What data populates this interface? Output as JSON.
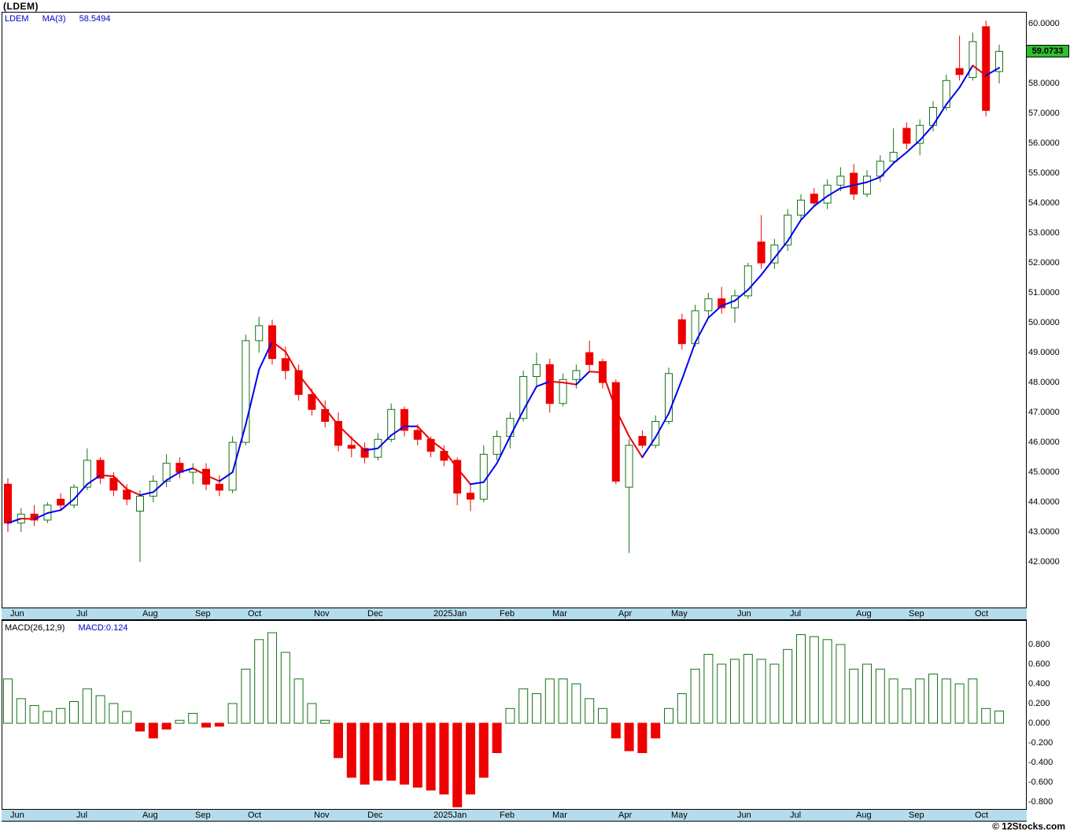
{
  "title": "(LDEM)",
  "watermark": "© 12Stocks.com",
  "main_legend": {
    "symbol": "LDEM",
    "ma_label": "MA(3)",
    "ma_value": "58.5494"
  },
  "macd_legend": {
    "name": "MACD(26,12,9)",
    "current": "MACD:0.124"
  },
  "last_price_label": "59.0733",
  "colors": {
    "candle_up_stroke": "#167316",
    "candle_up_fill": "#ffffff",
    "candle_down": "#ee0000",
    "ma_up": "#0000ee",
    "ma_down": "#ee0000",
    "macd_up_stroke": "#167316",
    "macd_up_fill": "#ffffff",
    "macd_down": "#ee0000",
    "ribbon_bg": "#b5dcec",
    "price_marker_bg": "#2fbf2f",
    "legend_blue": "#0000cc",
    "axis_text": "#000000"
  },
  "chart_data": [
    {
      "type": "candlestick",
      "name": "LDEM weekly price",
      "symbol": "LDEM",
      "overlay": {
        "name": "MA(3)",
        "period": 3,
        "last_value": 58.5494,
        "up_color": "#0000ee",
        "down_color": "#ee0000"
      },
      "last_price": 59.0733,
      "ylim": [
        40.5,
        60.37
      ],
      "y_ticks": [
        "60.0000",
        "58.0000",
        "57.0000",
        "56.0000",
        "55.0000",
        "54.0000",
        "53.0000",
        "52.0000",
        "51.0000",
        "50.0000",
        "49.0000",
        "48.0000",
        "47.0000",
        "46.0000",
        "45.0000",
        "44.0000",
        "43.0000",
        "42.0000"
      ],
      "months": [
        {
          "label": "Jun",
          "i": 0
        },
        {
          "label": "Jul",
          "i": 5
        },
        {
          "label": "Aug",
          "i": 10
        },
        {
          "label": "Sep",
          "i": 14
        },
        {
          "label": "Oct",
          "i": 18
        },
        {
          "label": "Nov",
          "i": 23
        },
        {
          "label": "Dec",
          "i": 27
        },
        {
          "label": "2025Jan",
          "i": 32
        },
        {
          "label": "Feb",
          "i": 37
        },
        {
          "label": "Mar",
          "i": 41
        },
        {
          "label": "Apr",
          "i": 46
        },
        {
          "label": "May",
          "i": 50
        },
        {
          "label": "Jun",
          "i": 55
        },
        {
          "label": "Jul",
          "i": 59
        },
        {
          "label": "Aug",
          "i": 64
        },
        {
          "label": "Sep",
          "i": 68
        },
        {
          "label": "Oct",
          "i": 73
        }
      ],
      "ohlc": [
        [
          44.6,
          44.8,
          43.0,
          43.3
        ],
        [
          43.3,
          43.8,
          43.0,
          43.6
        ],
        [
          43.6,
          43.9,
          43.2,
          43.4
        ],
        [
          43.4,
          44.0,
          43.3,
          43.9
        ],
        [
          44.1,
          44.3,
          43.7,
          43.9
        ],
        [
          43.9,
          44.6,
          43.8,
          44.5
        ],
        [
          44.5,
          45.8,
          44.4,
          45.4
        ],
        [
          45.4,
          45.5,
          44.6,
          44.8
        ],
        [
          44.8,
          45.0,
          44.2,
          44.4
        ],
        [
          44.4,
          44.6,
          43.9,
          44.1
        ],
        [
          43.7,
          44.4,
          42.0,
          44.2
        ],
        [
          44.2,
          44.9,
          44.0,
          44.7
        ],
        [
          44.7,
          45.6,
          44.5,
          45.3
        ],
        [
          45.3,
          45.5,
          44.8,
          45.0
        ],
        [
          45.0,
          45.3,
          44.6,
          45.1
        ],
        [
          45.1,
          45.3,
          44.4,
          44.6
        ],
        [
          44.6,
          44.9,
          44.2,
          44.4
        ],
        [
          44.4,
          46.2,
          44.3,
          46.0
        ],
        [
          46.0,
          49.6,
          45.9,
          49.4
        ],
        [
          49.4,
          50.2,
          49.0,
          49.9
        ],
        [
          49.9,
          50.1,
          48.6,
          48.8
        ],
        [
          48.8,
          49.2,
          48.1,
          48.4
        ],
        [
          48.4,
          48.6,
          47.4,
          47.6
        ],
        [
          47.6,
          47.8,
          46.9,
          47.1
        ],
        [
          47.1,
          47.4,
          46.5,
          46.7
        ],
        [
          46.7,
          47.0,
          45.7,
          45.9
        ],
        [
          45.9,
          46.2,
          45.5,
          45.8
        ],
        [
          45.8,
          46.0,
          45.3,
          45.5
        ],
        [
          45.5,
          46.3,
          45.4,
          46.1
        ],
        [
          46.1,
          47.3,
          46.0,
          47.1
        ],
        [
          47.1,
          47.2,
          46.2,
          46.4
        ],
        [
          46.4,
          46.6,
          45.9,
          46.1
        ],
        [
          46.1,
          46.2,
          45.5,
          45.7
        ],
        [
          45.7,
          45.9,
          45.2,
          45.4
        ],
        [
          45.4,
          45.5,
          43.9,
          44.3
        ],
        [
          44.3,
          44.6,
          43.7,
          44.1
        ],
        [
          44.1,
          45.9,
          44.0,
          45.6
        ],
        [
          45.6,
          46.4,
          45.4,
          46.2
        ],
        [
          46.2,
          47.0,
          45.8,
          46.8
        ],
        [
          46.8,
          48.4,
          46.7,
          48.2
        ],
        [
          48.2,
          49.0,
          47.9,
          48.6
        ],
        [
          48.6,
          48.8,
          47.0,
          47.3
        ],
        [
          47.3,
          48.3,
          47.2,
          48.1
        ],
        [
          48.1,
          48.6,
          47.8,
          48.4
        ],
        [
          49.0,
          49.4,
          48.4,
          48.6
        ],
        [
          48.7,
          48.8,
          47.8,
          48.0
        ],
        [
          48.0,
          48.1,
          44.6,
          44.7
        ],
        [
          44.5,
          46.1,
          42.3,
          45.9
        ],
        [
          46.2,
          46.4,
          45.8,
          45.9
        ],
        [
          45.9,
          46.9,
          45.8,
          46.7
        ],
        [
          46.7,
          48.5,
          46.6,
          48.3
        ],
        [
          50.1,
          50.3,
          49.1,
          49.3
        ],
        [
          49.3,
          50.6,
          49.2,
          50.4
        ],
        [
          50.4,
          51.0,
          50.2,
          50.8
        ],
        [
          50.8,
          51.2,
          50.3,
          50.5
        ],
        [
          50.5,
          51.1,
          50.0,
          50.9
        ],
        [
          50.9,
          52.0,
          50.8,
          51.9
        ],
        [
          52.7,
          53.6,
          51.8,
          52.0
        ],
        [
          52.0,
          52.8,
          51.8,
          52.6
        ],
        [
          52.6,
          53.8,
          52.4,
          53.6
        ],
        [
          53.6,
          54.3,
          53.4,
          54.1
        ],
        [
          54.3,
          54.5,
          53.9,
          54.0
        ],
        [
          54.0,
          54.8,
          53.8,
          54.6
        ],
        [
          54.6,
          55.2,
          54.4,
          54.9
        ],
        [
          55.0,
          55.3,
          54.1,
          54.3
        ],
        [
          54.3,
          55.1,
          54.2,
          54.9
        ],
        [
          54.9,
          55.6,
          54.7,
          55.4
        ],
        [
          55.4,
          56.5,
          55.3,
          55.7
        ],
        [
          56.5,
          56.7,
          55.8,
          56.0
        ],
        [
          56.0,
          56.8,
          55.6,
          56.6
        ],
        [
          56.6,
          57.4,
          56.4,
          57.2
        ],
        [
          57.2,
          58.3,
          57.1,
          58.1
        ],
        [
          58.5,
          59.6,
          58.1,
          58.3
        ],
        [
          58.2,
          59.7,
          58.1,
          59.4
        ],
        [
          59.9,
          60.1,
          56.9,
          57.1
        ],
        [
          58.4,
          59.3,
          58.0,
          59.0733
        ]
      ]
    },
    {
      "type": "bar",
      "name": "MACD(26,12,9)",
      "last_value": 0.124,
      "ylim": [
        -0.87,
        1.04
      ],
      "zero_line": 0,
      "y_ticks": [
        "0.800",
        "0.600",
        "0.400",
        "0.200",
        "0.000",
        "-0.200",
        "-0.400",
        "-0.600",
        "-0.800"
      ],
      "values": [
        0.45,
        0.25,
        0.18,
        0.12,
        0.15,
        0.22,
        0.35,
        0.28,
        0.2,
        0.12,
        -0.08,
        -0.15,
        -0.06,
        0.03,
        0.1,
        -0.04,
        -0.03,
        0.2,
        0.55,
        0.85,
        0.92,
        0.72,
        0.45,
        0.2,
        0.03,
        -0.35,
        -0.55,
        -0.62,
        -0.58,
        -0.58,
        -0.62,
        -0.65,
        -0.68,
        -0.72,
        -0.85,
        -0.72,
        -0.55,
        -0.3,
        0.15,
        0.35,
        0.3,
        0.45,
        0.45,
        0.4,
        0.25,
        0.15,
        -0.15,
        -0.28,
        -0.3,
        -0.15,
        0.15,
        0.3,
        0.55,
        0.7,
        0.6,
        0.65,
        0.7,
        0.65,
        0.6,
        0.75,
        0.9,
        0.88,
        0.85,
        0.8,
        0.55,
        0.6,
        0.55,
        0.45,
        0.35,
        0.45,
        0.5,
        0.45,
        0.4,
        0.45,
        0.15,
        0.124
      ]
    }
  ]
}
